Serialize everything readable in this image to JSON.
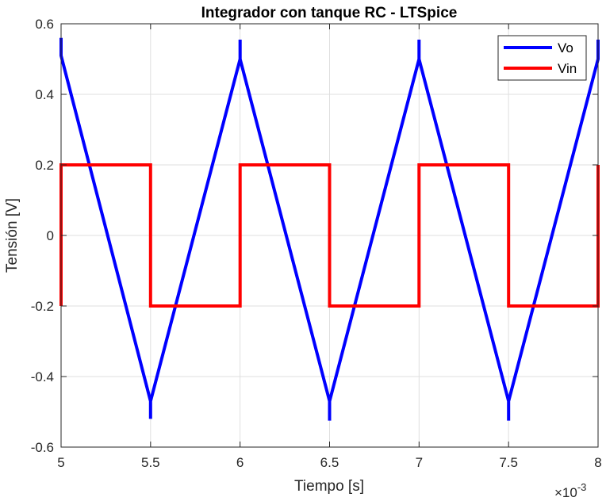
{
  "chart_data": {
    "type": "line",
    "title": "Integrador con tanque RC - LTSpice",
    "xlabel": "Tiempo [s]",
    "ylabel": "Tensión [V]",
    "x_exponent_label": "×10",
    "x_exponent": "-3",
    "xlim": [
      5,
      8
    ],
    "ylim": [
      -0.6,
      0.6
    ],
    "x_ticks": [
      "5",
      "5.5",
      "6",
      "6.5",
      "7",
      "7.5",
      "8"
    ],
    "y_ticks": [
      "-0.6",
      "-0.4",
      "-0.2",
      "0",
      "0.2",
      "0.4",
      "0.6"
    ],
    "grid": true,
    "legend_position": "top-right",
    "series": [
      {
        "name": "Vo",
        "color": "#0000ff",
        "points": [
          [
            5.0,
            0.56
          ],
          [
            5.0,
            0.51
          ],
          [
            5.5,
            -0.47
          ],
          [
            5.5,
            -0.52
          ],
          [
            5.5,
            -0.47
          ],
          [
            6.0,
            0.5
          ],
          [
            6.0,
            0.555
          ],
          [
            6.0,
            0.5
          ],
          [
            6.5,
            -0.47
          ],
          [
            6.5,
            -0.525
          ],
          [
            6.5,
            -0.47
          ],
          [
            7.0,
            0.5
          ],
          [
            7.0,
            0.555
          ],
          [
            7.0,
            0.5
          ],
          [
            7.5,
            -0.47
          ],
          [
            7.5,
            -0.525
          ],
          [
            7.5,
            -0.47
          ],
          [
            8.0,
            0.5
          ],
          [
            8.0,
            0.555
          ]
        ]
      },
      {
        "name": "Vin",
        "color": "#ff0000",
        "points": [
          [
            5.0,
            -0.2
          ],
          [
            5.0,
            0.2
          ],
          [
            5.5,
            0.2
          ],
          [
            5.5,
            -0.2
          ],
          [
            6.0,
            -0.2
          ],
          [
            6.0,
            0.2
          ],
          [
            6.5,
            0.2
          ],
          [
            6.5,
            -0.2
          ],
          [
            7.0,
            -0.2
          ],
          [
            7.0,
            0.2
          ],
          [
            7.5,
            0.2
          ],
          [
            7.5,
            -0.2
          ],
          [
            8.0,
            -0.2
          ],
          [
            8.0,
            0.2
          ]
        ]
      }
    ]
  }
}
